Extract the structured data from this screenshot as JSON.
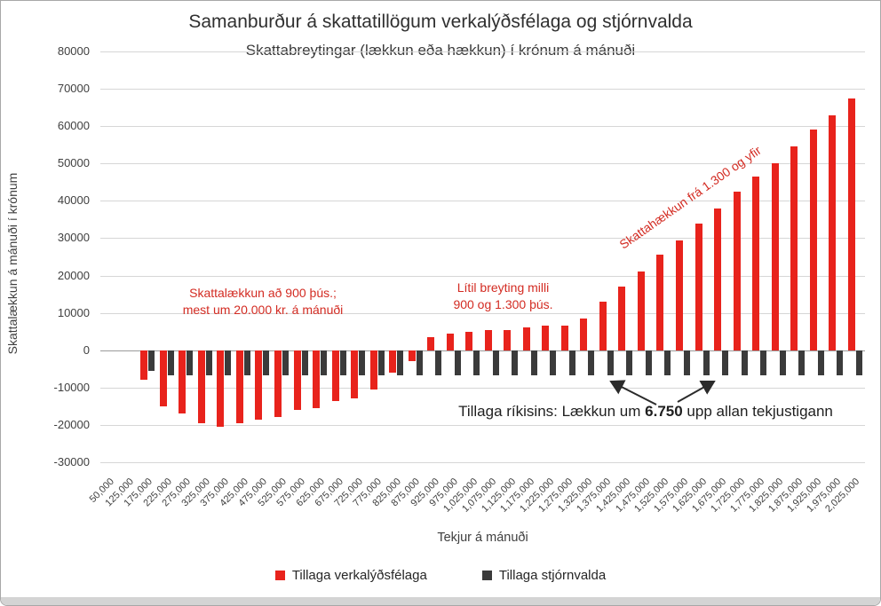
{
  "chart_data": {
    "type": "bar",
    "title": "Samanburður á skattatillögum verkalýðsfélaga og stjórnvalda",
    "subtitle": "Skattabreytingar (lækkun eða hækkun) í krónum á mánuði",
    "xlabel": "Tekjur á mánuði",
    "ylabel": "Skattalækkun á mánuði í krónum",
    "ylim": [
      -30000,
      80000
    ],
    "ytick_step": 10000,
    "yticks": [
      80000,
      70000,
      60000,
      50000,
      40000,
      30000,
      20000,
      10000,
      0,
      -10000,
      -20000,
      -30000
    ],
    "grid": true,
    "legend_position": "bottom",
    "categories": [
      "50,000",
      "125,000",
      "175,000",
      "225,000",
      "275,000",
      "325,000",
      "375,000",
      "425,000",
      "475,000",
      "525,000",
      "575,000",
      "625,000",
      "675,000",
      "725,000",
      "775,000",
      "825,000",
      "875,000",
      "925,000",
      "975,000",
      "1,025,000",
      "1,075,000",
      "1,125,000",
      "1,175,000",
      "1,225,000",
      "1,275,000",
      "1,325,000",
      "1,375,000",
      "1,425,000",
      "1,475,000",
      "1,525,000",
      "1,575,000",
      "1,625,000",
      "1,675,000",
      "1,725,000",
      "1,775,000",
      "1,825,000",
      "1,875,000",
      "1,925,000",
      "1,975,000",
      "2,025,000"
    ],
    "series": [
      {
        "name": "Tillaga verkalýðsfélaga",
        "color": "#e8231c",
        "values": [
          0,
          0,
          -8000,
          -15000,
          -17000,
          -19500,
          -20500,
          -19500,
          -18500,
          -18000,
          -16000,
          -15500,
          -13500,
          -13000,
          -10500,
          -6000,
          -3000,
          3500,
          4500,
          5000,
          5500,
          5500,
          6000,
          6500,
          6500,
          8500,
          13000,
          17000,
          21000,
          25500,
          29500,
          34000,
          38000,
          42500,
          46500,
          50000,
          54500,
          59000,
          63000,
          67500
        ]
      },
      {
        "name": "Tillaga stjórnvalda",
        "color": "#3b3b3b",
        "values": [
          0,
          0,
          -5500,
          -6750,
          -6750,
          -6750,
          -6750,
          -6750,
          -6750,
          -6750,
          -6750,
          -6750,
          -6750,
          -6750,
          -6750,
          -6750,
          -6750,
          -6750,
          -6750,
          -6750,
          -6750,
          -6750,
          -6750,
          -6750,
          -6750,
          -6750,
          -6750,
          -6750,
          -6750,
          -6750,
          -6750,
          -6750,
          -6750,
          -6750,
          -6750,
          -6750,
          -6750,
          -6750,
          -6750,
          -6750
        ]
      }
    ],
    "annotation_color": "#d32b22",
    "annotations": {
      "left": {
        "line1": "Skattalækkun að 900 þús.;",
        "line2": "mest um 20.000 kr. á mánuði"
      },
      "middle": {
        "line1": "Lítil breyting milli",
        "line2": "900 og 1.300 þús."
      },
      "rotated": {
        "text": "Skattahækkun frá 1.300 og yfir"
      },
      "government": {
        "prefix": "Tillaga ríkisins: Lækkun um ",
        "value": "6.750",
        "suffix": " upp allan tekjustigann"
      }
    }
  }
}
